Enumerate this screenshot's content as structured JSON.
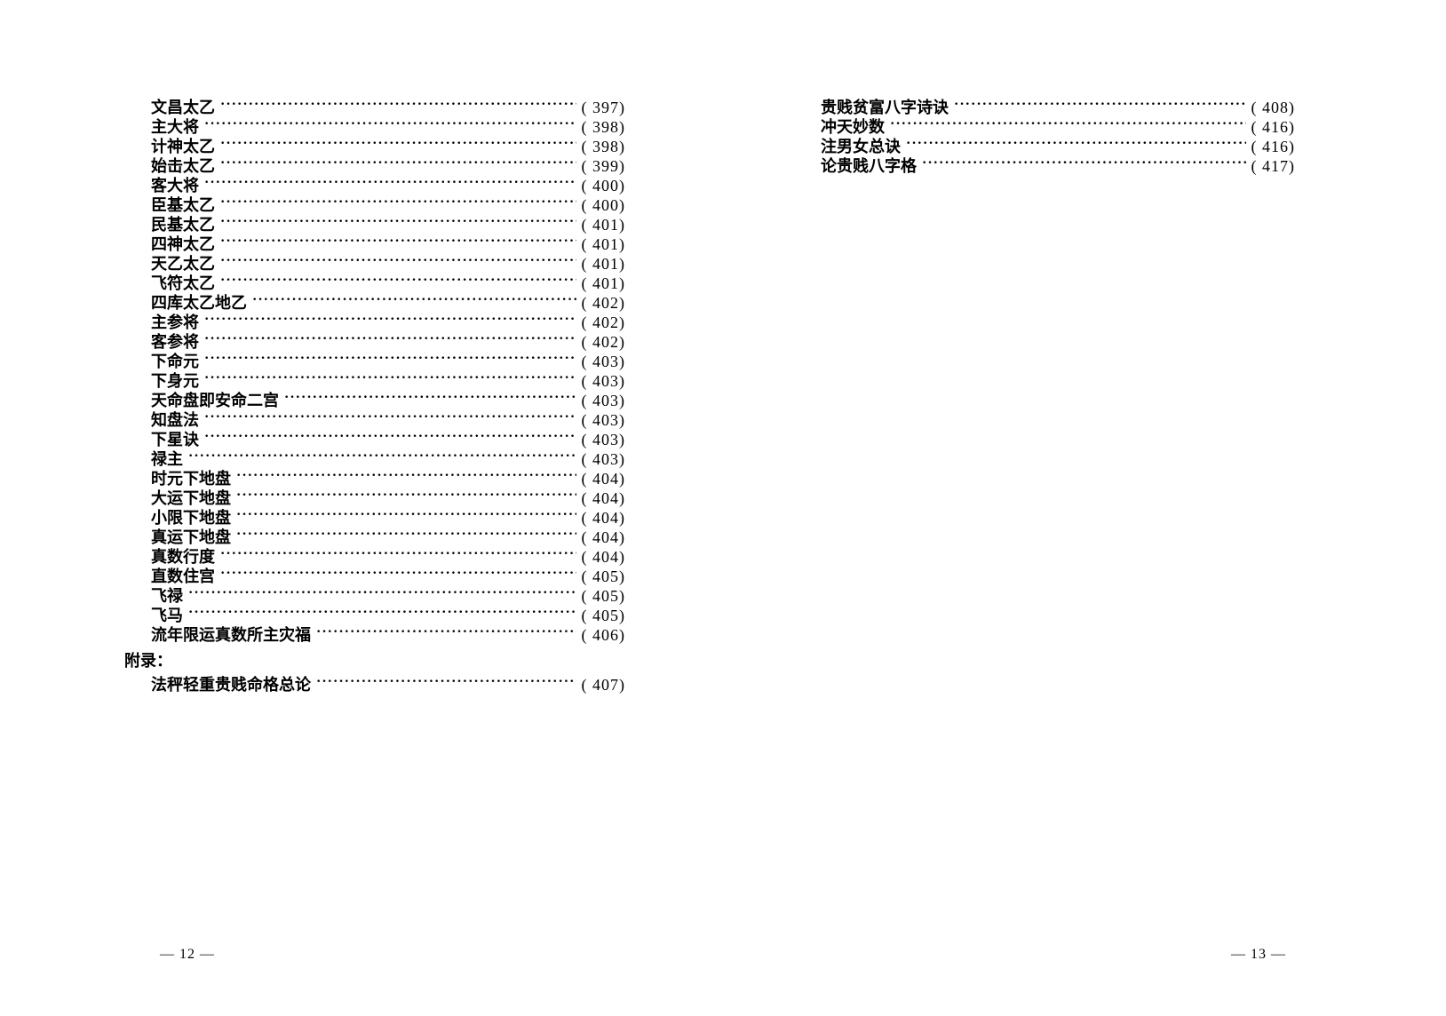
{
  "pages": {
    "left": {
      "entries": [
        {
          "title": "文昌太乙",
          "page": "( 397)"
        },
        {
          "title": "主大将",
          "page": "( 398)"
        },
        {
          "title": "计神太乙",
          "page": "( 398)"
        },
        {
          "title": "始击太乙",
          "page": "( 399)"
        },
        {
          "title": "客大将",
          "page": "( 400)"
        },
        {
          "title": "臣基太乙",
          "page": "( 400)"
        },
        {
          "title": "民基太乙",
          "page": "( 401)"
        },
        {
          "title": "四神太乙",
          "page": "( 401)"
        },
        {
          "title": "天乙太乙",
          "page": "( 401)"
        },
        {
          "title": "飞符太乙",
          "page": "( 401)"
        },
        {
          "title": "四库太乙地乙",
          "page": "( 402)"
        },
        {
          "title": "主参将",
          "page": "( 402)"
        },
        {
          "title": "客参将",
          "page": "( 402)"
        },
        {
          "title": "下命元",
          "page": "( 403)"
        },
        {
          "title": "下身元",
          "page": "( 403)"
        },
        {
          "title": "天命盘即安命二宫",
          "page": "( 403)"
        },
        {
          "title": "知盘法",
          "page": "( 403)"
        },
        {
          "title": "下星诀",
          "page": "( 403)"
        },
        {
          "title": "禄主",
          "page": "( 403)"
        },
        {
          "title": "时元下地盘",
          "page": "( 404)"
        },
        {
          "title": "大运下地盘",
          "page": "( 404)"
        },
        {
          "title": "小限下地盘",
          "page": "( 404)"
        },
        {
          "title": "真运下地盘",
          "page": "( 404)"
        },
        {
          "title": "真数行度",
          "page": "( 404)"
        },
        {
          "title": "直数住宫",
          "page": "( 405)"
        },
        {
          "title": "飞禄",
          "page": "( 405)"
        },
        {
          "title": "飞马",
          "page": "( 405)"
        },
        {
          "title": "流年限运真数所主灾福",
          "page": "( 406)"
        }
      ],
      "section_heading": "附录：",
      "appendix_entries": [
        {
          "title": "法秤轻重贵贱命格总论",
          "page": "( 407)"
        }
      ],
      "page_number": "— 12 —"
    },
    "right": {
      "entries": [
        {
          "title": "贵贱贫富八字诗诀",
          "page": "( 408)"
        },
        {
          "title": "冲天妙数",
          "page": "( 416)"
        },
        {
          "title": "注男女总诀",
          "page": "( 416)"
        },
        {
          "title": "论贵贱八字格",
          "page": "( 417)"
        }
      ],
      "page_number": "— 13 —"
    }
  }
}
